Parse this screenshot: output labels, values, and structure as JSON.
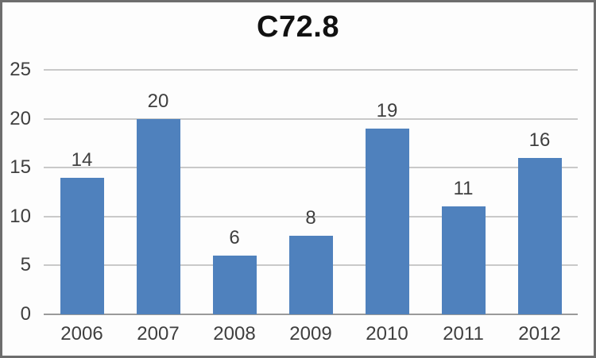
{
  "chart_data": {
    "type": "bar",
    "title": "C72.8",
    "categories": [
      "2006",
      "2007",
      "2008",
      "2009",
      "2010",
      "2011",
      "2012"
    ],
    "values": [
      14,
      20,
      6,
      8,
      19,
      11,
      16
    ],
    "xlabel": "",
    "ylabel": "",
    "y_ticks": [
      0,
      5,
      10,
      15,
      20,
      25
    ],
    "ylim": [
      0,
      25
    ],
    "grid": true,
    "legend_position": "none",
    "data_labels": true,
    "colors": {
      "bar_fill": "#4f81bd",
      "gridline": "#c9c9c9",
      "axis_line": "#9a9a9a",
      "tick_text": "#3f3f3f",
      "title_text": "#111111",
      "frame_border": "#6d6d6d",
      "background": "#fdfdfd"
    }
  }
}
